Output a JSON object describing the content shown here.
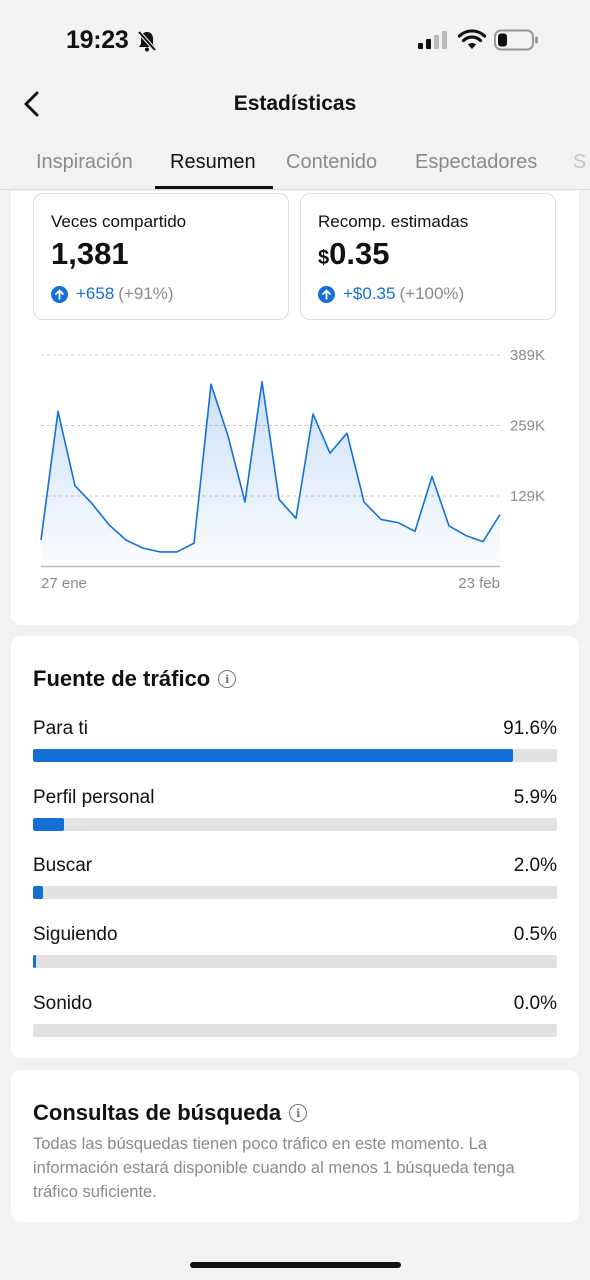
{
  "status_bar": {
    "time": "19:23",
    "icons": [
      "bell-slash-icon",
      "cellular-signal-icon",
      "wifi-icon",
      "battery-low-icon"
    ]
  },
  "nav": {
    "title": "Estadísticas",
    "back_icon": "chevron-left-icon"
  },
  "tabs": [
    {
      "label": "Inspiración",
      "active": false
    },
    {
      "label": "Resumen",
      "active": true
    },
    {
      "label": "Contenido",
      "active": false
    },
    {
      "label": "Espectadores",
      "active": false
    },
    {
      "label": "S",
      "active": false
    }
  ],
  "stats": [
    {
      "label": "Veces compartido",
      "currency": "",
      "value": "1,381",
      "change": "+658",
      "change_pct": "(+91%)"
    },
    {
      "label": "Recomp. estimadas",
      "currency": "$",
      "value": "0.35",
      "change": "+$0.35",
      "change_pct": "(+100%)"
    }
  ],
  "chart_data": {
    "type": "area",
    "y_tick_labels": [
      "389K",
      "259K",
      "129K"
    ],
    "y_tick_values": [
      389,
      259,
      129
    ],
    "ylim": [
      0,
      389
    ],
    "x_labels": [
      "27 ene",
      "23 feb"
    ],
    "x": [
      "27 ene",
      "",
      "",
      "",
      "",
      "",
      "",
      "",
      "",
      "",
      "",
      "",
      "",
      "",
      "",
      "",
      "",
      "",
      "",
      "",
      "",
      "",
      "",
      "",
      "",
      "",
      "",
      "23 feb"
    ],
    "values": [
      48,
      285,
      148,
      115,
      76,
      48,
      33,
      26,
      26,
      42,
      335,
      240,
      118,
      340,
      123,
      88,
      280,
      208,
      245,
      118,
      86,
      80,
      64,
      165,
      74,
      56,
      45,
      95
    ],
    "grid": true,
    "color": "#1470d6"
  },
  "traffic": {
    "title": "Fuente de tráfico",
    "rows": [
      {
        "name": "Para ti",
        "pct_label": "91.6%",
        "pct": 91.6
      },
      {
        "name": "Perfil personal",
        "pct_label": "5.9%",
        "pct": 5.9
      },
      {
        "name": "Buscar",
        "pct_label": "2.0%",
        "pct": 2.0
      },
      {
        "name": "Siguiendo",
        "pct_label": "0.5%",
        "pct": 0.5
      },
      {
        "name": "Sonido",
        "pct_label": "0.0%",
        "pct": 0.0
      }
    ]
  },
  "search": {
    "title": "Consultas de búsqueda",
    "description": "Todas las búsquedas tienen poco tráfico en este momento. La información estará disponible cuando al menos 1 búsqueda tenga tráfico suficiente."
  },
  "colors": {
    "accent": "#1470d6",
    "muted": "#8a8a8a",
    "background": "#f2f2f2"
  }
}
